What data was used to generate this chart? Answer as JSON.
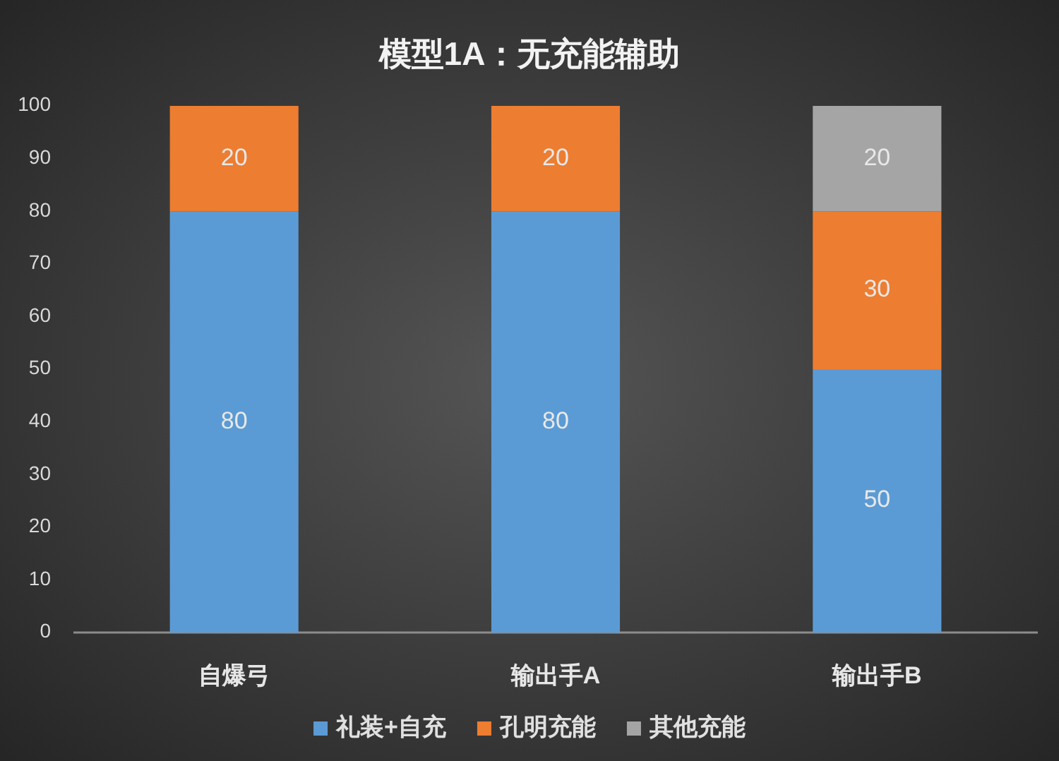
{
  "chart_data": {
    "type": "bar",
    "title": "模型1A：无充能辅助",
    "categories": [
      "自爆弓",
      "输出手A",
      "输出手B"
    ],
    "series": [
      {
        "name": "礼装+自充",
        "color": "#5b9bd5",
        "values": [
          80,
          80,
          50
        ]
      },
      {
        "name": "孔明充能",
        "color": "#ed7d31",
        "values": [
          20,
          20,
          30
        ]
      },
      {
        "name": "其他充能",
        "color": "#a5a5a5",
        "values": [
          null,
          null,
          20
        ]
      }
    ],
    "stacked": true,
    "ylim": [
      0,
      100
    ],
    "yticks": [
      0,
      10,
      20,
      30,
      40,
      50,
      60,
      70,
      80,
      90,
      100
    ],
    "data_labels": true,
    "legend": "bottom"
  }
}
